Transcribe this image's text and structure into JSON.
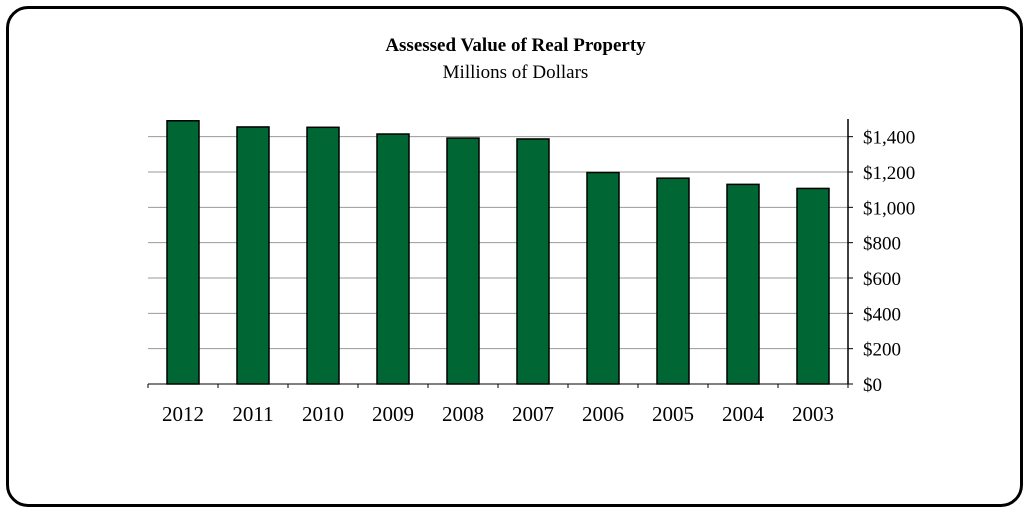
{
  "chart_data": {
    "type": "bar",
    "title": "Assessed Value of Real Property",
    "subtitle": "Millions of Dollars",
    "categories": [
      "2012",
      "2011",
      "2010",
      "2009",
      "2008",
      "2007",
      "2006",
      "2005",
      "2004",
      "2003"
    ],
    "values": [
      1490,
      1455,
      1453,
      1415,
      1392,
      1387,
      1197,
      1165,
      1130,
      1107
    ],
    "ylim": [
      0,
      1500
    ],
    "yticks": [
      0,
      200,
      400,
      600,
      800,
      1000,
      1200,
      1400
    ],
    "ytick_labels": [
      "$0",
      "$200",
      "$400",
      "$600",
      "$800",
      "$1,000",
      "$1,200",
      "$1,400"
    ],
    "y_axis_side": "right",
    "grid": true,
    "legend": "none",
    "bar_color": "#006633",
    "xlabel": "",
    "ylabel": ""
  }
}
